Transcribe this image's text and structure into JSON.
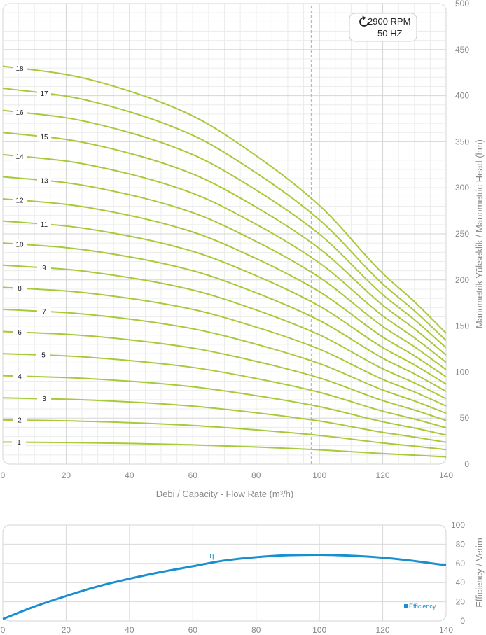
{
  "chart_data": [
    {
      "type": "line",
      "title": "",
      "xlabel": "Debi / Capacity  - Flow Rate (m³/h)",
      "ylabel": "Manometrik Yükseklik  / Manometric Head (hm)",
      "xlim": [
        0,
        140
      ],
      "ylim": [
        0,
        500
      ],
      "x_ticks": [
        "0",
        "20",
        "40",
        "60",
        "80",
        "100",
        "120",
        "140"
      ],
      "y_ticks": [
        "0",
        "50",
        "100",
        "150",
        "200",
        "250",
        "300",
        "350",
        "400",
        "450",
        "500"
      ],
      "grid": true,
      "line_color": "#a8c93a",
      "reference_line_x": 97.5,
      "speed_note": {
        "rpm": "2900 RPM",
        "freq": "50 HZ"
      },
      "x": [
        0,
        20,
        40,
        60,
        80,
        100,
        120,
        130,
        140
      ],
      "series": [
        {
          "name": "1",
          "values": [
            24,
            23.5,
            22.5,
            21,
            18.6,
            15.6,
            11.5,
            9.8,
            7.9
          ]
        },
        {
          "name": "2",
          "values": [
            48,
            47,
            45,
            42,
            37.2,
            31.2,
            23,
            19.6,
            15.8
          ]
        },
        {
          "name": "3",
          "values": [
            72,
            70.5,
            67.5,
            63,
            55.8,
            46.8,
            34.5,
            29.4,
            23.7
          ]
        },
        {
          "name": "4",
          "values": [
            96,
            94,
            90,
            84,
            74.4,
            62.4,
            46,
            39.2,
            31.6
          ]
        },
        {
          "name": "5",
          "values": [
            120,
            117.5,
            112.5,
            105,
            93,
            78,
            57.5,
            49,
            39.5
          ]
        },
        {
          "name": "6",
          "values": [
            144,
            141,
            135,
            126,
            111.6,
            93.6,
            69,
            58.8,
            47.4
          ]
        },
        {
          "name": "7",
          "values": [
            168,
            164.5,
            157.5,
            147,
            130.2,
            109.2,
            80.5,
            68.6,
            55.3
          ]
        },
        {
          "name": "8",
          "values": [
            192,
            188,
            180,
            168,
            148.8,
            124.8,
            92,
            78.4,
            63.2
          ]
        },
        {
          "name": "9",
          "values": [
            216,
            211.5,
            202.5,
            189,
            167.4,
            140.4,
            103.5,
            88.2,
            71.1
          ]
        },
        {
          "name": "10",
          "values": [
            240,
            235,
            225,
            210,
            186,
            156,
            115,
            98,
            79
          ]
        },
        {
          "name": "11",
          "values": [
            264,
            258.5,
            247.5,
            231,
            204.6,
            171.6,
            126.5,
            107.8,
            86.9
          ]
        },
        {
          "name": "12",
          "values": [
            288,
            282,
            270,
            252,
            223.2,
            187.2,
            138,
            117.6,
            94.8
          ]
        },
        {
          "name": "13",
          "values": [
            312,
            305.5,
            292.5,
            273,
            241.8,
            202.8,
            149.5,
            127.4,
            102.7
          ]
        },
        {
          "name": "14",
          "values": [
            336,
            329,
            315,
            294,
            260.4,
            218.4,
            161,
            137.2,
            110.6
          ]
        },
        {
          "name": "15",
          "values": [
            360,
            352.5,
            337.5,
            315,
            279,
            234,
            172.5,
            147,
            118.5
          ]
        },
        {
          "name": "16",
          "values": [
            384,
            376,
            360,
            336,
            297.6,
            249.6,
            184,
            156.8,
            126.4
          ]
        },
        {
          "name": "17",
          "values": [
            408,
            399.5,
            382.5,
            357,
            316.2,
            265.2,
            195.5,
            166.6,
            134.3
          ]
        },
        {
          "name": "18",
          "values": [
            432,
            423,
            405,
            378,
            334.8,
            280.8,
            207,
            176.4,
            142.2
          ]
        }
      ]
    },
    {
      "type": "line",
      "title": "",
      "xlabel": "",
      "ylabel": "Efficiency / Verim",
      "xlim": [
        0,
        140
      ],
      "ylim": [
        0,
        100
      ],
      "x_ticks": [
        "0",
        "20",
        "40",
        "60",
        "80",
        "100",
        "120",
        "140"
      ],
      "y_ticks": [
        "0",
        "20",
        "40",
        "60",
        "80",
        "100"
      ],
      "grid": true,
      "legend": "bottom-right",
      "curve_label": "η",
      "series": [
        {
          "name": "Efficiency",
          "color": "#1a8fd0",
          "x": [
            0,
            10,
            20,
            30,
            40,
            50,
            60,
            70,
            80,
            90,
            100,
            110,
            120,
            130,
            140
          ],
          "values": [
            2,
            15,
            26,
            36,
            44,
            51,
            57,
            63,
            66.5,
            68.5,
            69,
            68,
            66,
            62.5,
            58
          ]
        }
      ]
    }
  ]
}
